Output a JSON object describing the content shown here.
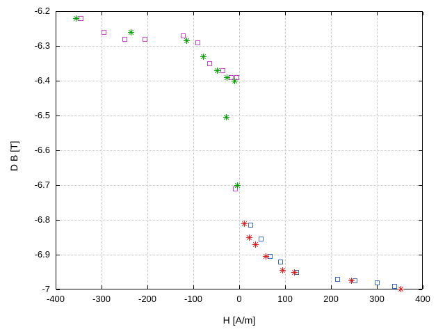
{
  "chart_data": {
    "type": "scatter",
    "title": "",
    "xlabel": "H [A/m]",
    "ylabel": "D B [T]",
    "xlim": [
      -400,
      400
    ],
    "ylim": [
      -7,
      -6.2
    ],
    "grid": true,
    "legend_position": "none",
    "x_tick_values": [
      -400,
      -300,
      -200,
      -100,
      0,
      100,
      200,
      300,
      400
    ],
    "x_tick_labels": [
      "-400",
      "-300",
      "-200",
      "-100",
      "0",
      "100",
      "200",
      "300",
      "400"
    ],
    "y_tick_values": [
      -7,
      -6.9,
      -6.8,
      -6.7,
      -6.6,
      -6.5,
      -6.4,
      -6.3,
      -6.2
    ],
    "y_tick_labels": [
      "-7",
      "-6.9",
      "-6.8",
      "-6.7",
      "-6.6",
      "-6.5",
      "-6.4",
      "-6.3",
      "-6.2"
    ],
    "series": [
      {
        "name": "magenta-squares",
        "marker": "square",
        "color": "#c847c8",
        "points": [
          [
            -345,
            -6.22
          ],
          [
            -295,
            -6.26
          ],
          [
            -250,
            -6.28
          ],
          [
            -205,
            -6.28
          ],
          [
            -122,
            -6.27
          ],
          [
            -90,
            -6.29
          ],
          [
            -65,
            -6.35
          ],
          [
            -35,
            -6.37
          ],
          [
            -18,
            -6.39
          ],
          [
            -5,
            -6.39
          ],
          [
            -8,
            -6.71
          ]
        ]
      },
      {
        "name": "green-asterisks",
        "marker": "asterisk",
        "color": "#00a000",
        "points": [
          [
            -355,
            -6.22
          ],
          [
            -235,
            -6.26
          ],
          [
            -115,
            -6.285
          ],
          [
            -78,
            -6.33
          ],
          [
            -47,
            -6.37
          ],
          [
            -26,
            -6.39
          ],
          [
            -10,
            -6.4
          ],
          [
            -28,
            -6.505
          ],
          [
            -4,
            -6.7
          ]
        ]
      },
      {
        "name": "blue-squares",
        "marker": "square",
        "color": "#3d6fc0",
        "points": [
          [
            25,
            -6.815
          ],
          [
            48,
            -6.855
          ],
          [
            68,
            -6.905
          ],
          [
            90,
            -6.92
          ],
          [
            125,
            -6.95
          ],
          [
            215,
            -6.97
          ],
          [
            252,
            -6.975
          ],
          [
            300,
            -6.98
          ],
          [
            338,
            -6.99
          ]
        ]
      },
      {
        "name": "red-asterisks",
        "marker": "asterisk",
        "color": "#e02020",
        "points": [
          [
            12,
            -6.81
          ],
          [
            22,
            -6.85
          ],
          [
            35,
            -6.87
          ],
          [
            58,
            -6.905
          ],
          [
            95,
            -6.945
          ],
          [
            120,
            -6.95
          ],
          [
            245,
            -6.975
          ],
          [
            352,
            -6.998
          ]
        ]
      }
    ]
  }
}
